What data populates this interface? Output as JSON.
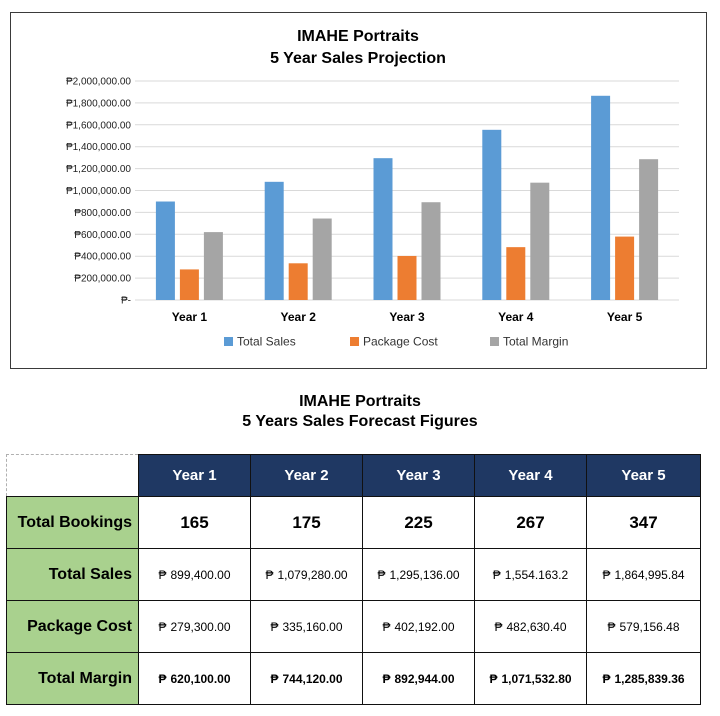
{
  "chart_data": {
    "type": "bar",
    "title": "IMAHE Portraits",
    "subtitle": "5 Year Sales Projection",
    "categories": [
      "Year 1",
      "Year 2",
      "Year 3",
      "Year 4",
      "Year 5"
    ],
    "series": [
      {
        "name": "Total Sales",
        "color": "#5b9bd5",
        "values": [
          899400,
          1079280,
          1295136,
          1554163.2,
          1864995.84
        ]
      },
      {
        "name": "Package Cost",
        "color": "#ed7d31",
        "values": [
          279300,
          335160,
          402192,
          482630.4,
          579156.48
        ]
      },
      {
        "name": "Total Margin",
        "color": "#a5a5a5",
        "values": [
          620100,
          744120,
          892944,
          1071532.8,
          1285839.36
        ]
      }
    ],
    "ylim": [
      0,
      2000000
    ],
    "yticks": [
      0,
      200000,
      400000,
      600000,
      800000,
      1000000,
      1200000,
      1400000,
      1600000,
      1800000,
      2000000
    ],
    "ytick_labels": [
      "₱-",
      "₱200,000.00",
      "₱400,000.00",
      "₱600,000.00",
      "₱800,000.00",
      "₱1,000,000.00",
      "₱1,200,000.00",
      "₱1,400,000.00",
      "₱1,600,000.00",
      "₱1,800,000.00",
      "₱2,000,000.00"
    ],
    "grid": true,
    "legend": "bottom"
  },
  "table": {
    "title": "IMAHE Portraits",
    "subtitle": "5 Years Sales Forecast Figures",
    "currency": "₱",
    "headers": [
      "Year 1",
      "Year 2",
      "Year 3",
      "Year 4",
      "Year 5"
    ],
    "rows": [
      {
        "label": "Total Bookings",
        "values": [
          "165",
          "175",
          "225",
          "267",
          "347"
        ]
      },
      {
        "label": "Total Sales",
        "values": [
          "899,400.00",
          "1,079,280.00",
          "1,295,136.00",
          "1,554.163.2",
          "1,864,995.84"
        ]
      },
      {
        "label": "Package Cost",
        "values": [
          "279,300.00",
          "335,160.00",
          "402,192.00",
          "482,630.40",
          "579,156.48"
        ]
      },
      {
        "label": "Total Margin",
        "values": [
          "620,100.00",
          "744,120.00",
          "892,944.00",
          "1,071,532.80",
          "1,285,839.36"
        ]
      }
    ]
  }
}
